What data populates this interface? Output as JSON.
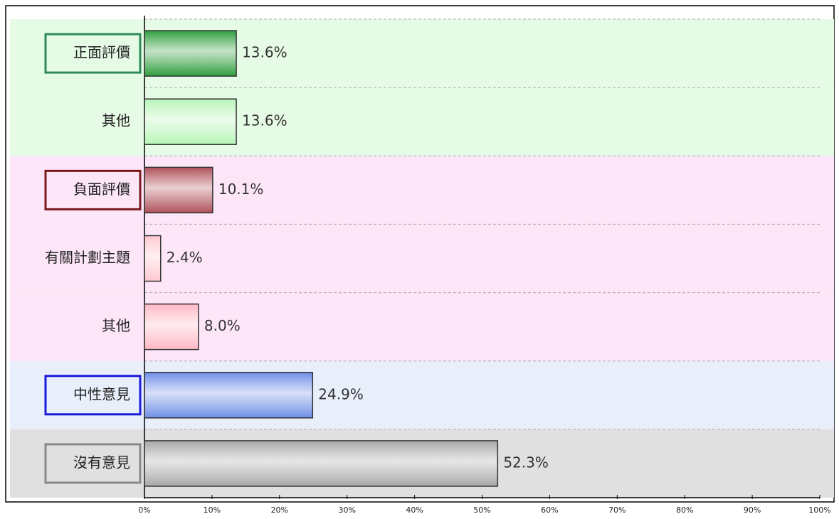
{
  "chart_data": {
    "type": "bar",
    "orientation": "horizontal",
    "categories": [
      "正面評價",
      "其他",
      "負面評價",
      "有關計劃主題",
      "其他",
      "中性意見",
      "沒有意見"
    ],
    "values": [
      13.6,
      13.6,
      10.1,
      2.4,
      8.0,
      24.9,
      52.3
    ],
    "value_labels": [
      "13.6%",
      "13.6%",
      "10.1%",
      "2.4%",
      "8.0%",
      "24.9%",
      "52.3%"
    ],
    "colors": [
      "#2e9e3e",
      "#b8f5b8",
      "#b0505a",
      "#ffc8d0",
      "#ffb8c4",
      "#6f8fe8",
      "#a8a8a8"
    ],
    "label_box_colors": [
      "#2e8b57",
      null,
      "#7a1a1a",
      null,
      null,
      "#1a1adc",
      "#888888"
    ],
    "band_colors": [
      "#e6fbe6",
      "#e6fbe6",
      "#fde6f8",
      "#fde6f8",
      "#fde6f8",
      "#e8eefa",
      "#e0e0e0"
    ],
    "xlim": [
      0,
      100
    ],
    "xticks": [
      {
        "value": 0,
        "label": "0%"
      },
      {
        "value": 10,
        "label": "10%"
      },
      {
        "value": 20,
        "label": "20%"
      },
      {
        "value": 30,
        "label": "30%"
      },
      {
        "value": 40,
        "label": "40%"
      },
      {
        "value": 50,
        "label": "50%"
      },
      {
        "value": 60,
        "label": "60%"
      },
      {
        "value": 70,
        "label": "70%"
      },
      {
        "value": 80,
        "label": "80%"
      },
      {
        "value": 90,
        "label": "90%"
      },
      {
        "value": 100,
        "label": "100%"
      }
    ],
    "grid": true
  }
}
